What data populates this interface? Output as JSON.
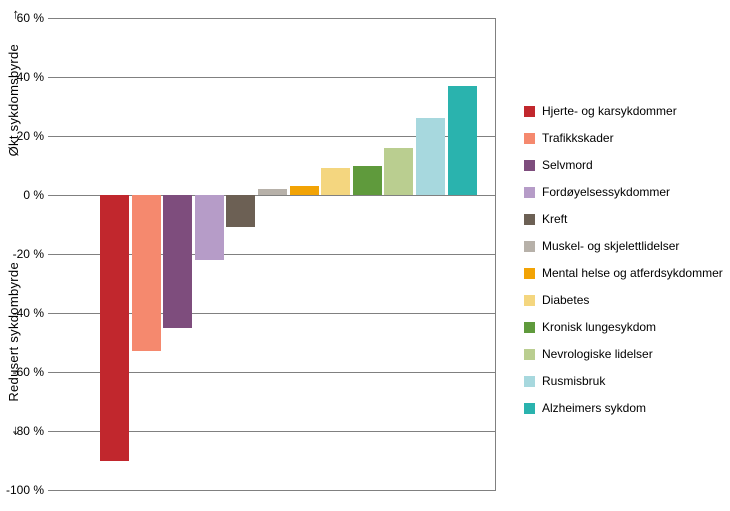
{
  "chart_data": {
    "type": "bar",
    "title": "",
    "ylabel_top": "Økt sykdomsbyrde",
    "ylabel_top_arrow": "→",
    "ylabel_bottom": "Redusert sykdombyrde",
    "ylabel_bottom_arrow": "←",
    "ylim": [
      -100,
      60
    ],
    "yticks": [
      60,
      40,
      20,
      0,
      -20,
      -40,
      -60,
      -80,
      -100
    ],
    "ytick_suffix": " %",
    "grid": true,
    "legend_position": "right",
    "categories": [
      "Hjerte- og karsykdommer",
      "Trafikkskader",
      "Selvmord",
      "Fordøyelsessykdommer",
      "Kreft",
      "Muskel- og skjelettlidelser",
      "Mental helse og atferdsykdommer",
      "Diabetes",
      "Kronisk lungesykdom",
      "Nevrologiske lidelser",
      "Rusmisbruk",
      "Alzheimers sykdom"
    ],
    "values": [
      -90,
      -53,
      -45,
      -22,
      -11,
      2,
      3,
      9,
      10,
      16,
      26,
      37
    ],
    "colors": [
      "#c1272d",
      "#f5896e",
      "#7e4d7d",
      "#b69cc8",
      "#6c6054",
      "#b7b1a9",
      "#f2a305",
      "#f4d67f",
      "#5f9a3c",
      "#bace90",
      "#a7d8de",
      "#2ab3ae"
    ],
    "grid_color": "#808080",
    "text_color": "#000000"
  }
}
